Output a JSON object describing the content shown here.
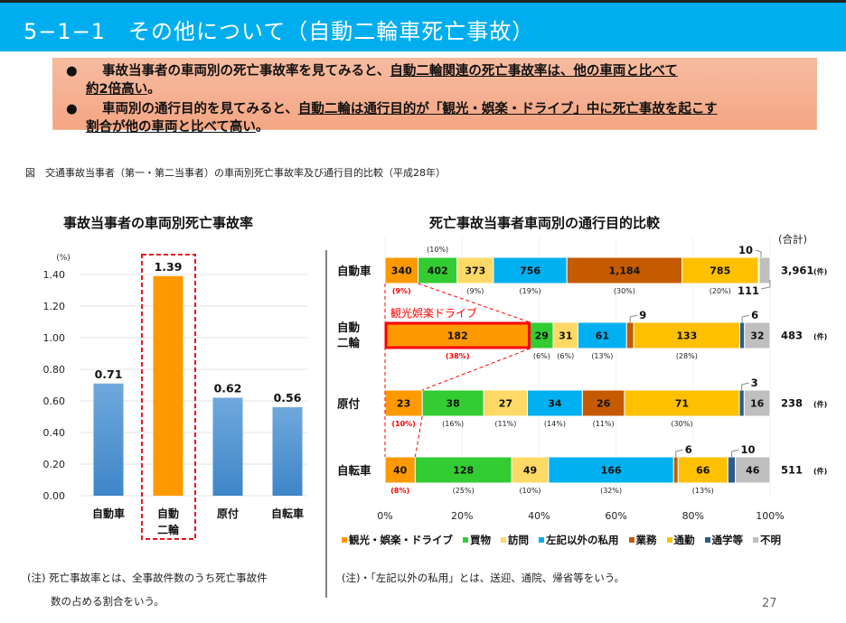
{
  "header": {
    "title": "5−1−1　その他について（自動二輪車死亡事故）"
  },
  "summary": {
    "bullet_symbol": "●",
    "items": [
      {
        "line1_plain": "事故当事者の車両別の死亡事故率を見てみると、",
        "line1_underlined": "自動二輪関連の死亡事故率は、他の車両と比べて",
        "line2_underlined": "約2倍高い",
        "line2_plain": "。"
      },
      {
        "line1_plain": "車両別の通行目的を見てみると、",
        "line1_underlined": "自動二輪は通行目的が「観光・娯楽・ドライブ」中に死亡事故を起こす",
        "line2_underlined": "割合が他の車両と比べて高い",
        "line2_plain": "。"
      }
    ]
  },
  "figure_caption": "図　交通事故当事者（第一・第二当事者）の車両別死亡事故率及び通行目的比較（平成28年）",
  "chart_data": [
    {
      "type": "bar",
      "title": "事故当事者の車両別死亡事故率",
      "unit_label": "(%)",
      "categories": [
        "自動車",
        "自動二輪",
        "原付",
        "自転車"
      ],
      "category_lines": [
        [
          "自動車"
        ],
        [
          "自動",
          "二輪"
        ],
        [
          "原付"
        ],
        [
          "自転車"
        ]
      ],
      "values": [
        0.71,
        1.39,
        0.62,
        0.56
      ],
      "value_labels": [
        "0.71",
        "1.39",
        "0.62",
        "0.56"
      ],
      "highlight_index": 1,
      "ylim": [
        0,
        1.4
      ],
      "yticks": [
        "0.00",
        "0.20",
        "0.40",
        "0.60",
        "0.80",
        "1.00",
        "1.20",
        "1.40"
      ],
      "ytick_values": [
        0,
        0.2,
        0.4,
        0.6,
        0.8,
        1.0,
        1.2,
        1.4
      ],
      "grid": true,
      "colors": {
        "normal": "#5B9BD5",
        "highlight": "#FF9900",
        "highlight_box": "#E8161E"
      }
    },
    {
      "type": "bar",
      "orientation": "horizontal-stacked-100",
      "title": "死亡事故当事者車両別の通行目的比較",
      "total_header": "(合計)",
      "total_unit": "(件)",
      "categories": [
        "自動車",
        "自動二輪",
        "原付",
        "自転車"
      ],
      "category_lines": [
        [
          "自動車"
        ],
        [
          "自動",
          "二輪"
        ],
        [
          "原付"
        ],
        [
          "自転車"
        ]
      ],
      "series": [
        {
          "name": "観光・娯楽・ドライブ",
          "color": "#FF9900",
          "values": [
            340,
            182,
            23,
            40
          ],
          "percent_labels": [
            "(9%)",
            "(38%)",
            "(10%)",
            "(8%)"
          ]
        },
        {
          "name": "買物",
          "color": "#33CC33",
          "values": [
            402,
            29,
            38,
            128
          ],
          "percent_labels": [
            "(10%)",
            "(6%)",
            "(16%)",
            "(25%)"
          ]
        },
        {
          "name": "訪問",
          "color": "#FFD966",
          "values": [
            373,
            31,
            27,
            49
          ],
          "percent_labels": [
            "(9%)",
            "(6%)",
            "(11%)",
            "(10%)"
          ]
        },
        {
          "name": "左記以外の私用",
          "color": "#00B0F0",
          "values": [
            756,
            61,
            34,
            166
          ],
          "percent_labels": [
            "(19%)",
            "(13%)",
            "(14%)",
            "(32%)"
          ]
        },
        {
          "name": "業務",
          "color": "#C55A00",
          "values": [
            1184,
            9,
            26,
            6
          ],
          "percent_labels": [
            "(30%)",
            "",
            "(11%)",
            ""
          ]
        },
        {
          "name": "通勤",
          "color": "#FFC000",
          "values": [
            785,
            133,
            71,
            66
          ],
          "percent_labels": [
            "(20%)",
            "(28%)",
            "(30%)",
            "(13%)"
          ]
        },
        {
          "name": "通学等",
          "color": "#2E5C8A",
          "values": [
            10,
            6,
            3,
            10
          ],
          "percent_labels": [
            "",
            "",
            "",
            ""
          ]
        },
        {
          "name": "不明",
          "color": "#BFBFBF",
          "values": [
            111,
            32,
            16,
            46
          ],
          "percent_labels": [
            "",
            "",
            "",
            ""
          ]
        }
      ],
      "segment_labels": [
        [
          "340",
          "402",
          "373",
          "756",
          "1,184",
          "785",
          "10",
          "111"
        ],
        [
          "182",
          "29",
          "31",
          "61",
          "9",
          "133",
          "6",
          "32"
        ],
        [
          "23",
          "38",
          "27",
          "34",
          "26",
          "71",
          "3",
          "16"
        ],
        [
          "40",
          "128",
          "49",
          "166",
          "6",
          "66",
          "10",
          "46"
        ]
      ],
      "totals": [
        "3,961",
        "483",
        "238",
        "511"
      ],
      "xticks": [
        "0%",
        "20%",
        "40%",
        "60%",
        "80%",
        "100%"
      ],
      "xlim": [
        0,
        100
      ],
      "grid": true,
      "legend_position": "bottom",
      "highlight_label": "観光娯楽ドライブ",
      "highlight_color": "#FF0000"
    }
  ],
  "notes": {
    "left_line1": "(注) 死亡事故率とは、全事故件数のうち死亡事故件",
    "left_line2": "数の占める割合をいう。",
    "right": "(注)・「左記以外の私用」とは、送迎、通院、帰省等をいう。"
  },
  "page_number": "27"
}
